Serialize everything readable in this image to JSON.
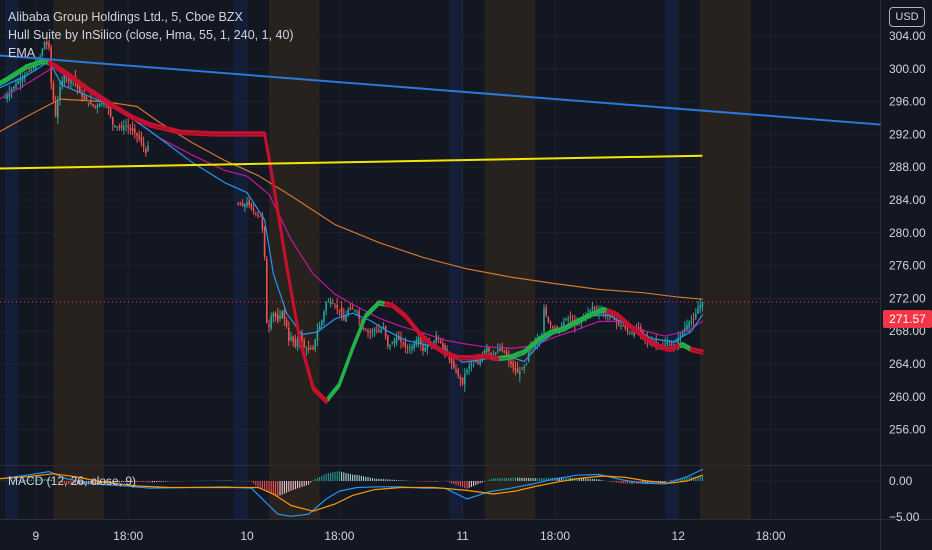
{
  "legend": {
    "title": "Alibaba Group Holdings Ltd., 5, Cboe BZX",
    "indicator1": "Hull Suite by InSilico (close, Hma, 55, 1, 240, 1, 40)",
    "indicator2": "EMA",
    "macd": "MACD (12, 26, close, 9)"
  },
  "currency_button": "USD",
  "last_price": "271.57",
  "colors": {
    "background": "#131722",
    "grid": "#1e222d",
    "up": "#26a69a",
    "down": "#ef5350",
    "trendline": "#2979d8",
    "horizontal": "#f5e600",
    "hull_up": "#22b14c",
    "hull_down": "#c8102e",
    "ema_orange": "#d4752a",
    "ema_magenta": "#c2189b",
    "ema_blue": "#2196f3",
    "macd_line": "#2196f3",
    "signal_line": "#ff9800",
    "price_tag": "#f23645"
  },
  "chart_data": {
    "type": "candlestick",
    "price_axis": {
      "ticks": [
        304,
        300,
        296,
        292,
        288,
        284,
        280,
        276,
        272,
        268,
        264,
        260,
        256
      ],
      "tick_labels": [
        "304.00",
        "300.00",
        "296.00",
        "292.00",
        "288.00",
        "284.00",
        "280.00",
        "276.00",
        "272.00",
        "268.00",
        "264.00",
        "260.00",
        "256.00"
      ],
      "range": [
        252.5,
        307.5
      ]
    },
    "macd_axis": {
      "ticks": [
        0,
        -5
      ],
      "tick_labels": [
        "0.00",
        "−5.00"
      ],
      "range": [
        -6,
        3.5
      ]
    },
    "time_axis": {
      "labels": [
        "9",
        "18:00",
        "10",
        "18:00",
        "11",
        "18:00",
        "12",
        "18:00"
      ],
      "positions_bars": [
        14,
        56,
        110,
        152,
        208,
        250,
        306,
        348
      ]
    },
    "sessions": [
      {
        "type": "pre",
        "from": 0,
        "to": 6
      },
      {
        "type": "post",
        "from": 22,
        "to": 45
      },
      {
        "type": "pre",
        "from": 104,
        "to": 110
      },
      {
        "type": "post",
        "from": 120,
        "to": 143
      },
      {
        "type": "pre",
        "from": 202,
        "to": 208
      },
      {
        "type": "post",
        "from": 218,
        "to": 241
      },
      {
        "type": "pre",
        "from": 300,
        "to": 306
      },
      {
        "type": "post",
        "from": 316,
        "to": 339
      }
    ],
    "trendline": {
      "from": {
        "bar": -30,
        "price": 302.2
      },
      "to": {
        "bar": 398,
        "price": 293.2
      }
    },
    "horizontal_line": {
      "from": {
        "bar": -30,
        "price": 287.7
      },
      "to": {
        "bar": 317,
        "price": 289.4
      }
    },
    "last_price_level": 271.57,
    "close_path": [
      [
        0,
        296.5
      ],
      [
        3,
        297.5
      ],
      [
        6,
        298.5
      ],
      [
        10,
        299.5
      ],
      [
        13,
        300.2
      ],
      [
        16,
        301.5
      ],
      [
        18,
        303.3
      ],
      [
        20,
        302.6
      ],
      [
        21,
        298.2
      ],
      [
        23,
        294.2
      ],
      [
        25,
        297.8
      ],
      [
        27,
        299.3
      ],
      [
        29,
        298.5
      ],
      [
        31,
        299.1
      ],
      [
        33,
        297.6
      ],
      [
        35,
        296.6
      ],
      [
        37,
        296.1
      ],
      [
        39,
        295.7
      ],
      [
        41,
        295.4
      ],
      [
        43,
        295.7
      ],
      [
        45,
        296.0
      ],
      [
        47,
        295.2
      ],
      [
        49,
        293.2
      ],
      [
        51,
        293.0
      ],
      [
        53,
        292.8
      ],
      [
        55,
        293.1
      ],
      [
        57,
        292.6
      ],
      [
        59,
        292.2
      ],
      [
        61,
        291.5
      ],
      [
        63,
        290.5
      ],
      [
        64,
        289.7
      ],
      [
        65,
        290.6
      ],
      [
        106,
        283.5
      ],
      [
        108,
        283.2
      ],
      [
        110,
        283.7
      ],
      [
        112,
        283.0
      ],
      [
        114,
        282.4
      ],
      [
        116,
        282.0
      ],
      [
        117,
        280.5
      ],
      [
        118,
        277.0
      ],
      [
        119,
        269.0
      ],
      [
        120,
        268.6
      ],
      [
        121,
        269.8
      ],
      [
        122,
        270.2
      ],
      [
        124,
        269.3
      ],
      [
        126,
        270.4
      ],
      [
        128,
        268.6
      ],
      [
        129,
        266.8
      ],
      [
        130,
        267.3
      ],
      [
        132,
        266.2
      ],
      [
        134,
        267.6
      ],
      [
        136,
        266.0
      ],
      [
        138,
        265.7
      ],
      [
        140,
        265.9
      ],
      [
        142,
        268.1
      ],
      [
        144,
        269.3
      ],
      [
        146,
        271.5
      ],
      [
        148,
        271.7
      ],
      [
        150,
        271.1
      ],
      [
        152,
        270.6
      ],
      [
        154,
        269.3
      ],
      [
        156,
        270.6
      ],
      [
        158,
        270.7
      ],
      [
        160,
        270.4
      ],
      [
        162,
        268.6
      ],
      [
        164,
        268.1
      ],
      [
        166,
        267.8
      ],
      [
        168,
        268.3
      ],
      [
        170,
        267.9
      ],
      [
        172,
        268.5
      ],
      [
        174,
        266.2
      ],
      [
        176,
        266.5
      ],
      [
        178,
        267.2
      ],
      [
        180,
        266.7
      ],
      [
        182,
        266.1
      ],
      [
        184,
        265.8
      ],
      [
        186,
        266.5
      ],
      [
        188,
        267.3
      ],
      [
        190,
        265.6
      ],
      [
        192,
        266.4
      ],
      [
        194,
        266.2
      ],
      [
        196,
        267.5
      ],
      [
        208,
        261.6
      ],
      [
        209,
        262.8
      ],
      [
        211,
        263.8
      ],
      [
        213,
        264.4
      ],
      [
        215,
        264.0
      ],
      [
        217,
        265.2
      ],
      [
        219,
        266.2
      ],
      [
        221,
        264.9
      ],
      [
        223,
        265.4
      ],
      [
        225,
        265.9
      ],
      [
        227,
        265.4
      ],
      [
        229,
        264.4
      ],
      [
        231,
        263.6
      ],
      [
        233,
        262.9
      ],
      [
        235,
        263.3
      ],
      [
        237,
        264.1
      ],
      [
        238,
        265.8
      ],
      [
        240,
        266.2
      ],
      [
        242,
        267.0
      ],
      [
        244,
        267.6
      ],
      [
        245,
        270.8
      ],
      [
        247,
        269.1
      ],
      [
        249,
        268.5
      ],
      [
        251,
        268.1
      ],
      [
        253,
        268.7
      ],
      [
        255,
        269.5
      ],
      [
        257,
        269.6
      ],
      [
        259,
        268.7
      ],
      [
        261,
        269.0
      ],
      [
        263,
        269.9
      ],
      [
        265,
        270.2
      ],
      [
        267,
        270.9
      ],
      [
        269,
        270.5
      ],
      [
        271,
        270.4
      ],
      [
        273,
        269.8
      ],
      [
        275,
        270.1
      ],
      [
        277,
        269.4
      ],
      [
        279,
        268.8
      ],
      [
        281,
        268.6
      ],
      [
        283,
        268.0
      ],
      [
        285,
        267.7
      ],
      [
        287,
        268.5
      ],
      [
        289,
        267.9
      ],
      [
        291,
        267.2
      ],
      [
        293,
        266.5
      ],
      [
        295,
        266.8
      ],
      [
        297,
        266.3
      ],
      [
        299,
        266.1
      ],
      [
        301,
        266.6
      ],
      [
        303,
        266.2
      ],
      [
        305,
        266.7
      ],
      [
        307,
        267.6
      ],
      [
        309,
        268.4
      ],
      [
        311,
        269.1
      ],
      [
        313,
        269.4
      ],
      [
        315,
        270.8
      ],
      [
        317,
        271.6
      ]
    ],
    "indicators": {
      "ema_orange": [
        [
          -8,
          291.5
        ],
        [
          10,
          294.2
        ],
        [
          25,
          296.3
        ],
        [
          45,
          296.0
        ],
        [
          60,
          295.4
        ],
        [
          70,
          293.5
        ],
        [
          85,
          291.0
        ],
        [
          100,
          288.8
        ],
        [
          115,
          287.0
        ],
        [
          130,
          284.5
        ],
        [
          150,
          281.0
        ],
        [
          170,
          278.8
        ],
        [
          190,
          277.0
        ],
        [
          210,
          275.6
        ],
        [
          230,
          274.6
        ],
        [
          250,
          273.8
        ],
        [
          270,
          273.1
        ],
        [
          290,
          272.7
        ],
        [
          305,
          272.2
        ],
        [
          317,
          271.9
        ]
      ],
      "ema_magenta": [
        [
          -8,
          295.5
        ],
        [
          10,
          298.2
        ],
        [
          22,
          300.2
        ],
        [
          30,
          298.7
        ],
        [
          40,
          297.4
        ],
        [
          50,
          295.6
        ],
        [
          60,
          293.5
        ],
        [
          70,
          291.6
        ],
        [
          85,
          289.5
        ],
        [
          100,
          287.6
        ],
        [
          110,
          286.9
        ],
        [
          120,
          284.7
        ],
        [
          130,
          279.2
        ],
        [
          140,
          275.0
        ],
        [
          150,
          272.5
        ],
        [
          160,
          271.0
        ],
        [
          170,
          269.6
        ],
        [
          180,
          268.6
        ],
        [
          190,
          267.8
        ],
        [
          200,
          266.9
        ],
        [
          208,
          266.5
        ],
        [
          218,
          266.1
        ],
        [
          230,
          265.9
        ],
        [
          240,
          266.2
        ],
        [
          250,
          267.3
        ],
        [
          260,
          268.2
        ],
        [
          270,
          269.2
        ],
        [
          280,
          269.2
        ],
        [
          290,
          268.1
        ],
        [
          300,
          267.4
        ],
        [
          310,
          268.0
        ],
        [
          317,
          269.2
        ]
      ],
      "ema_blue": [
        [
          -8,
          297.0
        ],
        [
          10,
          299.2
        ],
        [
          20,
          300.9
        ],
        [
          26,
          298.0
        ],
        [
          35,
          297.0
        ],
        [
          45,
          295.9
        ],
        [
          55,
          294.4
        ],
        [
          65,
          292.6
        ],
        [
          75,
          290.6
        ],
        [
          85,
          288.6
        ],
        [
          100,
          286.1
        ],
        [
          110,
          284.9
        ],
        [
          118,
          281.6
        ],
        [
          122,
          275.0
        ],
        [
          128,
          270.2
        ],
        [
          135,
          267.6
        ],
        [
          142,
          267.9
        ],
        [
          150,
          269.5
        ],
        [
          158,
          270.2
        ],
        [
          166,
          269.3
        ],
        [
          174,
          268.0
        ],
        [
          182,
          266.9
        ],
        [
          190,
          266.4
        ],
        [
          200,
          265.8
        ],
        [
          208,
          264.2
        ],
        [
          218,
          264.6
        ],
        [
          228,
          265.0
        ],
        [
          236,
          264.3
        ],
        [
          244,
          266.7
        ],
        [
          254,
          268.6
        ],
        [
          264,
          269.8
        ],
        [
          274,
          270.0
        ],
        [
          284,
          268.6
        ],
        [
          294,
          267.1
        ],
        [
          304,
          266.7
        ],
        [
          312,
          268.0
        ],
        [
          317,
          270.0
        ]
      ],
      "hull": [
        [
          -8,
          297.6
        ],
        [
          0,
          298.7
        ],
        [
          10,
          300.4
        ],
        [
          18,
          301.1
        ],
        [
          22,
          300.6
        ],
        [
          28,
          299.6
        ],
        [
          38,
          297.6
        ],
        [
          48,
          295.8
        ],
        [
          58,
          294.2
        ],
        [
          66,
          293.3
        ],
        [
          80,
          292.4
        ],
        [
          95,
          292.2
        ],
        [
          110,
          292.2
        ],
        [
          118,
          292.2
        ],
        [
          122,
          286.0
        ],
        [
          128,
          276.0
        ],
        [
          134,
          267.0
        ],
        [
          140,
          261.2
        ],
        [
          146,
          259.6
        ],
        [
          152,
          261.6
        ],
        [
          158,
          266.0
        ],
        [
          164,
          270.0
        ],
        [
          170,
          271.6
        ],
        [
          176,
          271.3
        ],
        [
          182,
          270.0
        ],
        [
          188,
          268.0
        ],
        [
          194,
          266.5
        ],
        [
          200,
          265.5
        ],
        [
          206,
          264.9
        ],
        [
          212,
          264.9
        ],
        [
          218,
          265.1
        ],
        [
          224,
          264.8
        ],
        [
          230,
          265.0
        ],
        [
          236,
          265.6
        ],
        [
          242,
          267.0
        ],
        [
          248,
          268.0
        ],
        [
          254,
          268.4
        ],
        [
          260,
          269.3
        ],
        [
          266,
          270.1
        ],
        [
          272,
          270.8
        ],
        [
          278,
          270.2
        ],
        [
          284,
          268.8
        ],
        [
          290,
          267.5
        ],
        [
          296,
          266.4
        ],
        [
          302,
          265.9
        ],
        [
          308,
          266.5
        ],
        [
          312,
          265.9
        ],
        [
          317,
          265.6
        ]
      ],
      "hull_up_segments": [
        [
          -8,
          19
        ],
        [
          147,
          172
        ],
        [
          225,
          273
        ],
        [
          307,
          311
        ]
      ],
      "hull_down_segments": [
        [
          19,
          147
        ],
        [
          172,
          225
        ],
        [
          273,
          307
        ],
        [
          311,
          318
        ]
      ]
    },
    "macd": {
      "macd_line": [
        [
          -8,
          0.1
        ],
        [
          10,
          0.8
        ],
        [
          20,
          1.3
        ],
        [
          28,
          0.3
        ],
        [
          40,
          -0.4
        ],
        [
          55,
          -0.7
        ],
        [
          66,
          -1.0
        ],
        [
          100,
          -0.8
        ],
        [
          112,
          -1.0
        ],
        [
          118,
          -2.8
        ],
        [
          124,
          -4.6
        ],
        [
          130,
          -4.9
        ],
        [
          138,
          -4.6
        ],
        [
          146,
          -2.5
        ],
        [
          152,
          -1.4
        ],
        [
          160,
          -0.9
        ],
        [
          170,
          -0.8
        ],
        [
          180,
          -0.8
        ],
        [
          190,
          -1.0
        ],
        [
          200,
          -1.0
        ],
        [
          210,
          -2.5
        ],
        [
          220,
          -1.5
        ],
        [
          230,
          -1.0
        ],
        [
          240,
          -0.4
        ],
        [
          250,
          0.3
        ],
        [
          260,
          0.8
        ],
        [
          270,
          0.9
        ],
        [
          280,
          0.2
        ],
        [
          290,
          -0.3
        ],
        [
          300,
          -0.4
        ],
        [
          310,
          0.6
        ],
        [
          317,
          1.6
        ]
      ],
      "signal_line": [
        [
          -8,
          0.2
        ],
        [
          10,
          0.6
        ],
        [
          22,
          1.0
        ],
        [
          32,
          0.6
        ],
        [
          45,
          -0.2
        ],
        [
          60,
          -0.7
        ],
        [
          75,
          -0.9
        ],
        [
          100,
          -0.9
        ],
        [
          115,
          -0.9
        ],
        [
          122,
          -1.8
        ],
        [
          130,
          -3.4
        ],
        [
          140,
          -4.2
        ],
        [
          150,
          -3.2
        ],
        [
          158,
          -2.0
        ],
        [
          168,
          -1.2
        ],
        [
          180,
          -0.9
        ],
        [
          195,
          -0.9
        ],
        [
          210,
          -1.3
        ],
        [
          222,
          -1.8
        ],
        [
          232,
          -1.4
        ],
        [
          242,
          -0.7
        ],
        [
          252,
          -0.1
        ],
        [
          262,
          0.4
        ],
        [
          272,
          0.7
        ],
        [
          282,
          0.5
        ],
        [
          292,
          0.0
        ],
        [
          302,
          -0.3
        ],
        [
          310,
          0.0
        ],
        [
          317,
          0.8
        ]
      ]
    }
  }
}
